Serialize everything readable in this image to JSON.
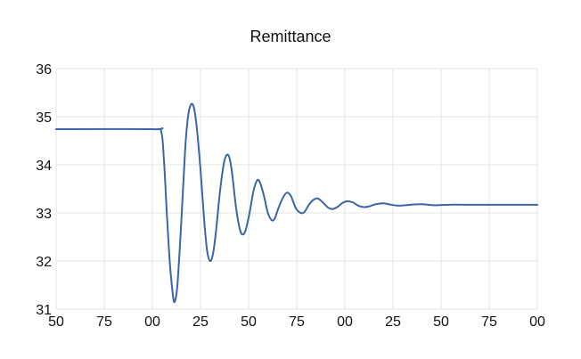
{
  "chart_data": {
    "type": "line",
    "title": "Remittance",
    "xlabel": "",
    "ylabel": "",
    "x_tick_labels": [
      "50",
      "75",
      "00",
      "25",
      "50",
      "75",
      "00",
      "25",
      "50",
      "75",
      "00"
    ],
    "y_tick_labels": [
      "31",
      "32",
      "33",
      "34",
      "35",
      "36"
    ],
    "xlim": [
      -100,
      150
    ],
    "ylim": [
      31,
      36
    ],
    "grid": true,
    "legend": "none",
    "series": [
      {
        "color": "#3b65a9",
        "points": [
          [
            -100,
            34.74
          ],
          [
            -50,
            34.74
          ],
          [
            -45.5,
            34.7
          ],
          [
            -44,
            34.1
          ],
          [
            -42.5,
            33.0
          ],
          [
            -41,
            32.0
          ],
          [
            -39.5,
            31.35
          ],
          [
            -38.5,
            31.15
          ],
          [
            -37,
            31.5
          ],
          [
            -35,
            32.8
          ],
          [
            -33,
            34.3
          ],
          [
            -31.5,
            35.0
          ],
          [
            -30,
            35.25
          ],
          [
            -28.5,
            35.2
          ],
          [
            -27,
            34.8
          ],
          [
            -25,
            33.9
          ],
          [
            -23,
            32.8
          ],
          [
            -21.5,
            32.2
          ],
          [
            -20,
            32.0
          ],
          [
            -18.5,
            32.15
          ],
          [
            -17,
            32.6
          ],
          [
            -15,
            33.4
          ],
          [
            -13,
            34.0
          ],
          [
            -11.5,
            34.2
          ],
          [
            -10,
            34.15
          ],
          [
            -8.5,
            33.8
          ],
          [
            -6.5,
            33.1
          ],
          [
            -4.5,
            32.65
          ],
          [
            -3,
            32.55
          ],
          [
            -1.5,
            32.65
          ],
          [
            0.5,
            33.0
          ],
          [
            2.5,
            33.45
          ],
          [
            4.5,
            33.68
          ],
          [
            6,
            33.62
          ],
          [
            8,
            33.35
          ],
          [
            10,
            33.0
          ],
          [
            12,
            32.85
          ],
          [
            13.5,
            32.88
          ],
          [
            15.5,
            33.1
          ],
          [
            18,
            33.33
          ],
          [
            20,
            33.42
          ],
          [
            22,
            33.35
          ],
          [
            24.5,
            33.1
          ],
          [
            27,
            33.0
          ],
          [
            29,
            33.02
          ],
          [
            31.5,
            33.18
          ],
          [
            34,
            33.28
          ],
          [
            36,
            33.3
          ],
          [
            38.5,
            33.22
          ],
          [
            41,
            33.12
          ],
          [
            43.5,
            33.08
          ],
          [
            46,
            33.12
          ],
          [
            48.5,
            33.2
          ],
          [
            51,
            33.24
          ],
          [
            54,
            33.22
          ],
          [
            57,
            33.15
          ],
          [
            60,
            33.12
          ],
          [
            63,
            33.14
          ],
          [
            66,
            33.18
          ],
          [
            70,
            33.2
          ],
          [
            74,
            33.17
          ],
          [
            78,
            33.15
          ],
          [
            84,
            33.17
          ],
          [
            90,
            33.18
          ],
          [
            96,
            33.16
          ],
          [
            104,
            33.17
          ],
          [
            112,
            33.17
          ],
          [
            120,
            33.17
          ],
          [
            130,
            33.17
          ],
          [
            150,
            33.17
          ]
        ]
      }
    ]
  }
}
